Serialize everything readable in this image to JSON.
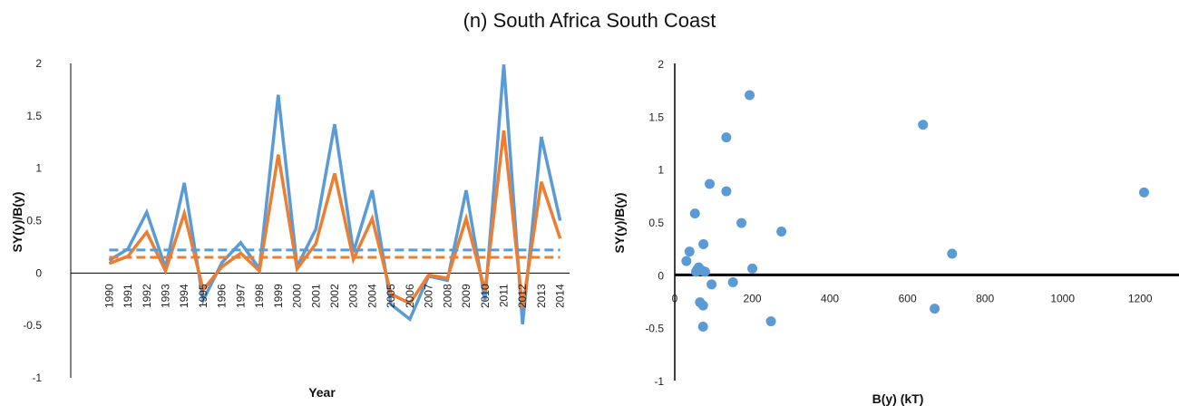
{
  "figure_title": "(n)  South Africa South Coast",
  "colors": {
    "blue": "#5b9bd5",
    "orange": "#ed7d31",
    "axis": "#000000"
  },
  "chart_data": [
    {
      "type": "line",
      "xlabel": "Year",
      "ylabel": "SY(y)/B(y)",
      "ylim": [
        -1,
        2
      ],
      "yticks": [
        -1,
        -0.5,
        0,
        0.5,
        1,
        1.5,
        2
      ],
      "ytick_labels": [
        "-1",
        "-0.5",
        "0",
        "0.5",
        "1",
        "1.5",
        "2"
      ],
      "categories": [
        "1990",
        "1991",
        "1992",
        "1993",
        "1994",
        "1995",
        "1996",
        "1997",
        "1998",
        "1999",
        "2000",
        "2001",
        "2002",
        "2003",
        "2004",
        "2005",
        "2006",
        "2007",
        "2008",
        "2009",
        "2010",
        "2011",
        "2012",
        "2013",
        "2014"
      ],
      "series": [
        {
          "style": "solid",
          "color": "#5b9bd5",
          "values": [
            0.12,
            0.23,
            0.58,
            0.05,
            0.86,
            -0.26,
            0.1,
            0.29,
            0.04,
            1.7,
            0.06,
            0.42,
            1.42,
            0.2,
            0.79,
            -0.3,
            -0.44,
            -0.03,
            -0.07,
            0.79,
            -0.26,
            1.99,
            -0.49,
            1.3,
            0.5
          ]
        },
        {
          "style": "solid",
          "color": "#ed7d31",
          "values": [
            0.09,
            0.16,
            0.39,
            0.02,
            0.57,
            -0.16,
            0.06,
            0.19,
            0.02,
            1.13,
            0.04,
            0.28,
            0.95,
            0.13,
            0.52,
            -0.2,
            -0.29,
            -0.02,
            -0.05,
            0.52,
            -0.17,
            1.36,
            -0.33,
            0.87,
            0.33
          ]
        },
        {
          "style": "dashed",
          "color": "#5b9bd5",
          "values": [
            0.22,
            0.22,
            0.22,
            0.22,
            0.22,
            0.22,
            0.22,
            0.22,
            0.22,
            0.22,
            0.22,
            0.22,
            0.22,
            0.22,
            0.22,
            0.22,
            0.22,
            0.22,
            0.22,
            0.22,
            0.22,
            0.22,
            0.22,
            0.22,
            0.22
          ]
        },
        {
          "style": "dashed",
          "color": "#ed7d31",
          "values": [
            0.15,
            0.15,
            0.15,
            0.15,
            0.15,
            0.15,
            0.15,
            0.15,
            0.15,
            0.15,
            0.15,
            0.15,
            0.15,
            0.15,
            0.15,
            0.15,
            0.15,
            0.15,
            0.15,
            0.15,
            0.15,
            0.15,
            0.15,
            0.15,
            0.15
          ]
        }
      ]
    },
    {
      "type": "scatter",
      "xlabel": "B(y) (kT)",
      "ylabel": "SY(y)/B(y)",
      "xlim": [
        0,
        1300
      ],
      "ylim": [
        -1,
        2
      ],
      "xticks": [
        0,
        200,
        400,
        600,
        800,
        1000,
        1200
      ],
      "xtick_labels": [
        "0",
        "200",
        "400",
        "600",
        "800",
        "1000",
        "1200"
      ],
      "yticks": [
        -1,
        -0.5,
        0,
        0.5,
        1,
        1.5,
        2
      ],
      "ytick_labels": [
        "-1",
        "-0.5",
        "0",
        "0.5",
        "1",
        "1.5",
        "2"
      ],
      "color": "#5b9bd5",
      "points": [
        {
          "x": 30,
          "y": 0.13
        },
        {
          "x": 38,
          "y": 0.22
        },
        {
          "x": 52,
          "y": 0.58
        },
        {
          "x": 55,
          "y": 0.03
        },
        {
          "x": 58,
          "y": 0.05
        },
        {
          "x": 62,
          "y": 0.07
        },
        {
          "x": 65,
          "y": -0.26
        },
        {
          "x": 70,
          "y": 0.04
        },
        {
          "x": 73,
          "y": -0.29
        },
        {
          "x": 74,
          "y": 0.29
        },
        {
          "x": 73,
          "y": -0.49
        },
        {
          "x": 78,
          "y": 0.03
        },
        {
          "x": 90,
          "y": 0.86
        },
        {
          "x": 95,
          "y": -0.09
        },
        {
          "x": 133,
          "y": 1.3
        },
        {
          "x": 133,
          "y": 0.79
        },
        {
          "x": 150,
          "y": -0.07
        },
        {
          "x": 172,
          "y": 0.49
        },
        {
          "x": 193,
          "y": 1.7
        },
        {
          "x": 200,
          "y": 0.06
        },
        {
          "x": 248,
          "y": -0.44
        },
        {
          "x": 275,
          "y": 0.41
        },
        {
          "x": 640,
          "y": 1.42
        },
        {
          "x": 670,
          "y": -0.32
        },
        {
          "x": 715,
          "y": 0.2
        },
        {
          "x": 1210,
          "y": 0.78
        }
      ]
    }
  ]
}
